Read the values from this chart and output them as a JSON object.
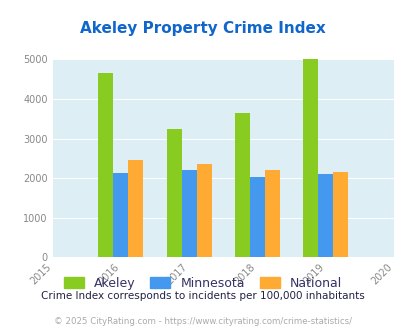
{
  "title": "Akeley Property Crime Index",
  "years": [
    2015,
    2016,
    2017,
    2018,
    2019,
    2020
  ],
  "bar_years": [
    2016,
    2017,
    2018,
    2019
  ],
  "akeley": [
    4650,
    3250,
    3650,
    5000
  ],
  "minnesota": [
    2130,
    2200,
    2020,
    2110
  ],
  "national": [
    2470,
    2360,
    2210,
    2150
  ],
  "akeley_color": "#88cc22",
  "minnesota_color": "#4499ee",
  "national_color": "#ffaa33",
  "bg_color": "#ddeef5",
  "title_color": "#1166cc",
  "subtitle": "Crime Index corresponds to incidents per 100,000 inhabitants",
  "subtitle_color": "#222244",
  "footer": "© 2025 CityRating.com - https://www.cityrating.com/crime-statistics/",
  "footer_color": "#aaaaaa",
  "ylim": [
    0,
    5000
  ],
  "yticks": [
    0,
    1000,
    2000,
    3000,
    4000,
    5000
  ],
  "bar_width": 0.22,
  "legend_labels": [
    "Akeley",
    "Minnesota",
    "National"
  ],
  "legend_text_color": "#333366"
}
